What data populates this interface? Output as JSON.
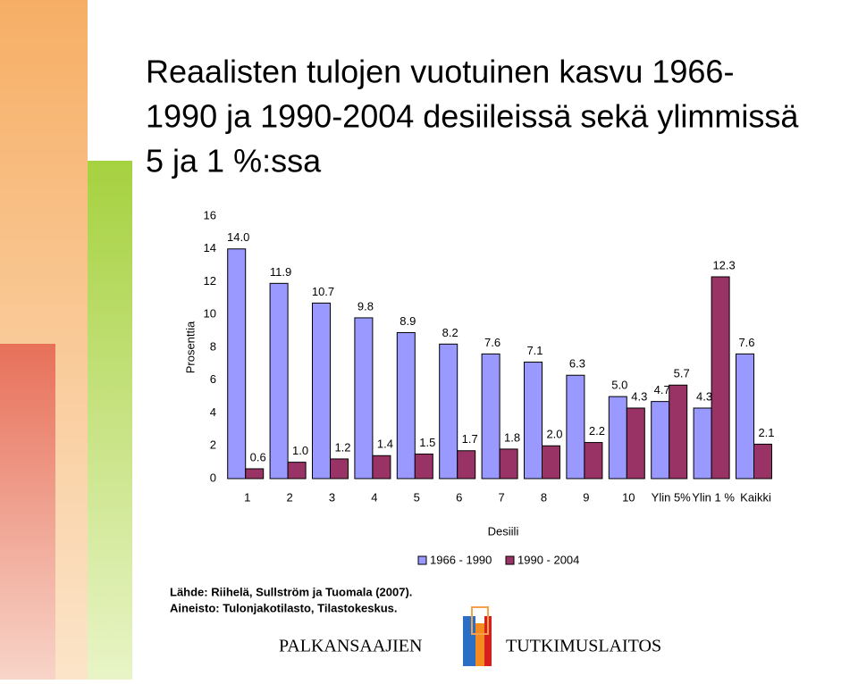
{
  "chart_data": {
    "type": "bar",
    "title": [
      "Reaalisten tulojen vuotuinen kasvu 1966-",
      "1990 ja 1990-2004 desiileissä sekä ylimmissä",
      "5 ja 1 %:ssa"
    ],
    "x_label": "Desiili",
    "y_label": "Prosenttia",
    "categories": [
      "1",
      "2",
      "3",
      "4",
      "5",
      "6",
      "7",
      "8",
      "9",
      "10",
      "Ylin 5%",
      "Ylin 1 %",
      "Kaikki"
    ],
    "series": [
      {
        "name": "1966 - 1990",
        "color": "#9999ff",
        "values": [
          14,
          11.9,
          10.7,
          9.8,
          8.9,
          8.2,
          7.6,
          7.1,
          6.3,
          5,
          4.7,
          4.3,
          7.6
        ],
        "value_labels": [
          "14.0",
          "11.9",
          "10.7",
          "9.8",
          "8.9",
          "8.2",
          "7.6",
          "7.1",
          "6.3",
          "5.0",
          "4.7",
          "4.3",
          "7.6"
        ]
      },
      {
        "name": "1990 - 2004",
        "color": "#993366",
        "values": [
          0.6,
          1,
          1.2,
          1.4,
          1.5,
          1.7,
          1.8,
          2,
          2.2,
          4.3,
          5.7,
          12.3,
          2.1
        ],
        "value_labels": [
          "0.6",
          "1.0",
          "1.2",
          "1.4",
          "1.5",
          "1.7",
          "1.8",
          "2.0",
          "2.2",
          "4.3",
          "5.7",
          "12.3",
          "2.1"
        ]
      }
    ],
    "ylim": [
      0,
      16
    ],
    "yticks": [
      0,
      2,
      4,
      6,
      8,
      10,
      12,
      14,
      16
    ],
    "grid": false,
    "legend": "bottom"
  },
  "source": [
    "Lähde: Riihelä, Sullström ja Tuomala (2007).",
    "Aineisto: Tulonjakotilasto, Tilastokeskus."
  ],
  "footer": [
    "PALKANSAAJIEN",
    "TUTKIMUSLAITOS"
  ]
}
